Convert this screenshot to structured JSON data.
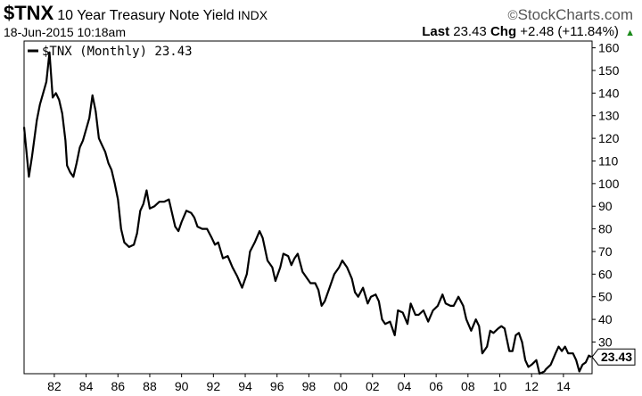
{
  "header": {
    "symbol": "$TNX",
    "name": "10 Year Treasury Note Yield",
    "exchange": "INDX",
    "brand": "StockCharts.com",
    "brand_mark": "©",
    "date": "18-Jun-2015 10:18am",
    "last_label": "Last",
    "last_value": "23.43",
    "chg_label": "Chg",
    "chg_value": "+2.48 (+11.84%)",
    "up_color": "#1a8a1a"
  },
  "chart_data": {
    "type": "line",
    "legend": "$TNX (Monthly) 23.43",
    "last_label": "23.43",
    "yticks": [
      30,
      40,
      50,
      60,
      70,
      80,
      90,
      100,
      110,
      120,
      130,
      140,
      150,
      160
    ],
    "xtick_labels": [
      "82",
      "84",
      "86",
      "88",
      "90",
      "92",
      "94",
      "96",
      "98",
      "00",
      "02",
      "04",
      "06",
      "08",
      "10",
      "12",
      "14"
    ],
    "xtick_years": [
      1982,
      1984,
      1986,
      1988,
      1990,
      1992,
      1994,
      1996,
      1998,
      2000,
      2002,
      2004,
      2006,
      2008,
      2010,
      2012,
      2014
    ],
    "xlim": [
      1980.1,
      2015.8
    ],
    "ylim": [
      16,
      163
    ],
    "grid": false,
    "legend_position": "top-left",
    "series": [
      {
        "values": [
          [
            1980.1,
            125
          ],
          [
            1980.4,
            103
          ],
          [
            1980.6,
            112
          ],
          [
            1980.9,
            128
          ],
          [
            1981.1,
            135
          ],
          [
            1981.3,
            140
          ],
          [
            1981.5,
            145
          ],
          [
            1981.7,
            158
          ],
          [
            1981.9,
            138
          ],
          [
            1982.1,
            140
          ],
          [
            1982.3,
            137
          ],
          [
            1982.5,
            131
          ],
          [
            1982.7,
            119
          ],
          [
            1982.8,
            108
          ],
          [
            1983.0,
            105
          ],
          [
            1983.2,
            103
          ],
          [
            1983.4,
            109
          ],
          [
            1983.6,
            116
          ],
          [
            1983.8,
            119
          ],
          [
            1984.0,
            124
          ],
          [
            1984.2,
            129
          ],
          [
            1984.4,
            139
          ],
          [
            1984.6,
            132
          ],
          [
            1984.8,
            120
          ],
          [
            1985.0,
            117
          ],
          [
            1985.2,
            114
          ],
          [
            1985.4,
            109
          ],
          [
            1985.6,
            106
          ],
          [
            1985.8,
            100
          ],
          [
            1986.0,
            93
          ],
          [
            1986.2,
            80
          ],
          [
            1986.4,
            74
          ],
          [
            1986.7,
            72
          ],
          [
            1987.0,
            73
          ],
          [
            1987.2,
            78
          ],
          [
            1987.4,
            88
          ],
          [
            1987.6,
            91
          ],
          [
            1987.8,
            97
          ],
          [
            1988.0,
            89
          ],
          [
            1988.3,
            90
          ],
          [
            1988.6,
            92
          ],
          [
            1988.9,
            92
          ],
          [
            1989.2,
            93
          ],
          [
            1989.4,
            87
          ],
          [
            1989.6,
            81
          ],
          [
            1989.8,
            79
          ],
          [
            1990.0,
            83
          ],
          [
            1990.3,
            88
          ],
          [
            1990.6,
            87
          ],
          [
            1990.8,
            85
          ],
          [
            1991.0,
            81
          ],
          [
            1991.3,
            80
          ],
          [
            1991.6,
            80
          ],
          [
            1991.9,
            76
          ],
          [
            1992.1,
            73
          ],
          [
            1992.3,
            74
          ],
          [
            1992.6,
            67
          ],
          [
            1992.9,
            68
          ],
          [
            1993.2,
            63
          ],
          [
            1993.5,
            59
          ],
          [
            1993.8,
            54
          ],
          [
            1994.1,
            60
          ],
          [
            1994.3,
            70
          ],
          [
            1994.6,
            74
          ],
          [
            1994.9,
            79
          ],
          [
            1995.1,
            76
          ],
          [
            1995.4,
            66
          ],
          [
            1995.7,
            63
          ],
          [
            1995.9,
            57
          ],
          [
            1996.2,
            63
          ],
          [
            1996.4,
            69
          ],
          [
            1996.7,
            68
          ],
          [
            1996.9,
            64
          ],
          [
            1997.1,
            67
          ],
          [
            1997.3,
            69
          ],
          [
            1997.6,
            61
          ],
          [
            1997.9,
            58
          ],
          [
            1998.1,
            56
          ],
          [
            1998.4,
            56
          ],
          [
            1998.6,
            53
          ],
          [
            1998.8,
            46
          ],
          [
            1999.0,
            48
          ],
          [
            1999.3,
            54
          ],
          [
            1999.6,
            60
          ],
          [
            1999.9,
            63
          ],
          [
            2000.1,
            66
          ],
          [
            2000.4,
            63
          ],
          [
            2000.7,
            58
          ],
          [
            2000.9,
            52
          ],
          [
            2001.1,
            50
          ],
          [
            2001.4,
            54
          ],
          [
            2001.7,
            47
          ],
          [
            2001.9,
            50
          ],
          [
            2002.2,
            51
          ],
          [
            2002.4,
            48
          ],
          [
            2002.6,
            40
          ],
          [
            2002.8,
            38
          ],
          [
            2003.1,
            39
          ],
          [
            2003.4,
            33
          ],
          [
            2003.6,
            44
          ],
          [
            2003.9,
            43
          ],
          [
            2004.2,
            38
          ],
          [
            2004.4,
            47
          ],
          [
            2004.7,
            42
          ],
          [
            2004.9,
            42
          ],
          [
            2005.2,
            44
          ],
          [
            2005.5,
            39
          ],
          [
            2005.8,
            44
          ],
          [
            2006.1,
            46
          ],
          [
            2006.4,
            51
          ],
          [
            2006.6,
            47
          ],
          [
            2006.9,
            46
          ],
          [
            2007.1,
            46
          ],
          [
            2007.4,
            50
          ],
          [
            2007.7,
            46
          ],
          [
            2007.9,
            40
          ],
          [
            2008.2,
            35
          ],
          [
            2008.5,
            40
          ],
          [
            2008.7,
            37
          ],
          [
            2008.9,
            25
          ],
          [
            2009.2,
            28
          ],
          [
            2009.4,
            35
          ],
          [
            2009.6,
            34
          ],
          [
            2009.9,
            36
          ],
          [
            2010.1,
            37
          ],
          [
            2010.3,
            36
          ],
          [
            2010.6,
            26
          ],
          [
            2010.8,
            26
          ],
          [
            2011.0,
            33
          ],
          [
            2011.2,
            34
          ],
          [
            2011.4,
            30
          ],
          [
            2011.6,
            22
          ],
          [
            2011.8,
            19
          ],
          [
            2012.0,
            20
          ],
          [
            2012.3,
            22
          ],
          [
            2012.5,
            16
          ],
          [
            2012.8,
            17
          ],
          [
            2012.9,
            18
          ],
          [
            2013.2,
            20
          ],
          [
            2013.5,
            25
          ],
          [
            2013.7,
            28
          ],
          [
            2013.9,
            26
          ],
          [
            2014.1,
            28
          ],
          [
            2014.3,
            25
          ],
          [
            2014.6,
            25
          ],
          [
            2014.8,
            22
          ],
          [
            2015.0,
            17
          ],
          [
            2015.2,
            20
          ],
          [
            2015.4,
            21
          ],
          [
            2015.6,
            24
          ],
          [
            2015.75,
            23.4
          ]
        ]
      }
    ]
  }
}
